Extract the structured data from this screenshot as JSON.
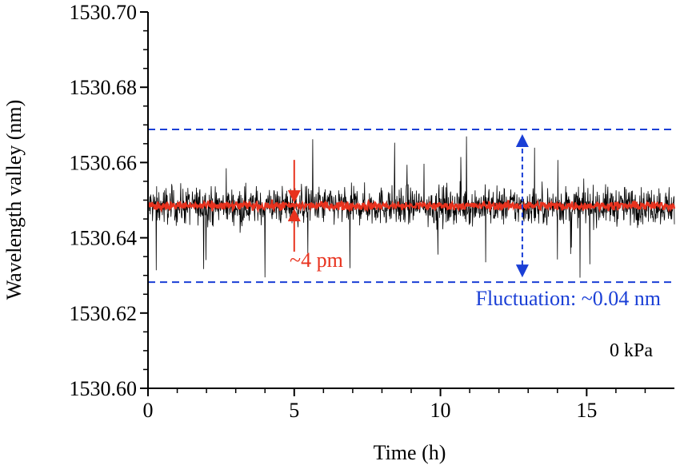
{
  "chart_data": {
    "type": "line",
    "xlabel": "Time (h)",
    "ylabel": "Wavelength valley (nm)",
    "xlim": [
      0,
      18
    ],
    "ylim": [
      1530.6,
      1530.7
    ],
    "x_ticks": [
      "0",
      "5",
      "10",
      "15"
    ],
    "y_ticks": [
      "1530.60",
      "1530.62",
      "1530.64",
      "1530.66",
      "1530.68",
      "1530.70"
    ],
    "grid": false,
    "series": [
      {
        "color": "#000000",
        "center": 1530.6485,
        "band": [
          1530.64,
          1530.658
        ],
        "extremes": [
          1530.628,
          1530.669
        ]
      },
      {
        "color": "#e8321e",
        "center": 1530.6485,
        "band": [
          1530.6465,
          1530.6505
        ]
      }
    ],
    "fluctuation_bounds": [
      1530.6282,
      1530.6688
    ],
    "annotations": {
      "red_label": "~4 pm",
      "blue_label": "Fluctuation: ~0.04 nm",
      "pressure_label": "0 kPa",
      "red_arrow_x": 5.0,
      "blue_arrow_x": 12.8
    },
    "colors": {
      "red": "#e8321e",
      "blue": "#1a3fd6",
      "black": "#000000"
    }
  }
}
